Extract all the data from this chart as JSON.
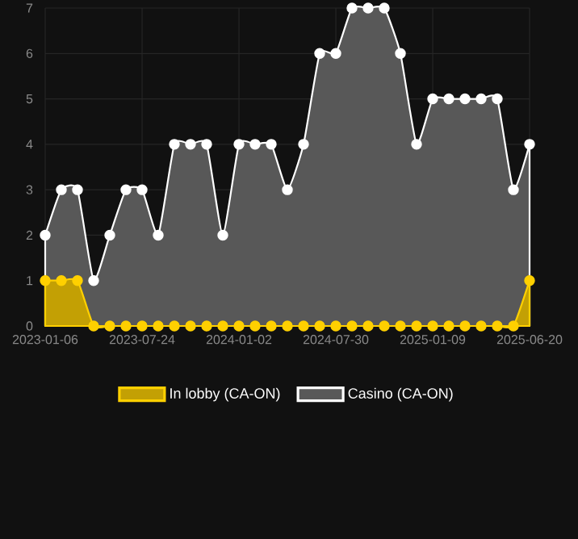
{
  "chart_data": {
    "type": "area",
    "categories": [
      "2023-01-06",
      null,
      null,
      null,
      null,
      null,
      "2023-07-24",
      null,
      null,
      null,
      null,
      null,
      "2024-01-02",
      null,
      null,
      null,
      null,
      null,
      "2024-07-30",
      null,
      null,
      null,
      null,
      null,
      "2025-01-09",
      null,
      null,
      null,
      null,
      null,
      "2025-06-20"
    ],
    "series": [
      {
        "name": "In lobby (CA-ON)",
        "color": "#ffd000",
        "values": [
          1,
          1,
          1,
          0,
          0,
          0,
          0,
          0,
          0,
          0,
          0,
          0,
          0,
          0,
          0,
          0,
          0,
          0,
          0,
          0,
          0,
          0,
          0,
          0,
          0,
          0,
          0,
          0,
          0,
          0,
          1
        ]
      },
      {
        "name": "Casino (CA-ON)",
        "color": "#ffffff",
        "values": [
          2,
          3,
          3,
          1,
          2,
          3,
          3,
          2,
          4,
          4,
          4,
          2,
          4,
          4,
          4,
          3,
          4,
          6,
          6,
          7,
          7,
          7,
          6,
          4,
          5,
          5,
          5,
          5,
          5,
          3,
          4
        ]
      }
    ],
    "ylim": [
      0,
      7
    ],
    "yticks": [
      0,
      1,
      2,
      3,
      4,
      5,
      6,
      7
    ],
    "grid": true,
    "legend": "bottom",
    "marker": "circle",
    "line_style": "solid"
  }
}
